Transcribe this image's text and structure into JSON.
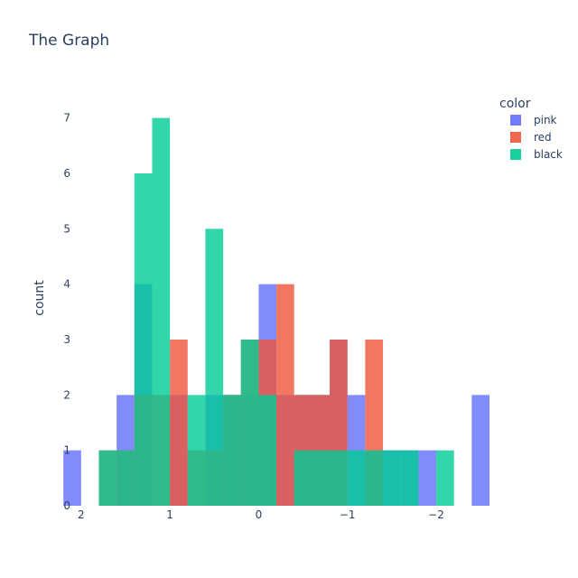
{
  "chart_data": {
    "type": "bar",
    "title": "The Graph",
    "xlabel": "",
    "ylabel": "count",
    "x_axis": {
      "reversed": true,
      "range": [
        2.1,
        -2.6
      ],
      "ticks": [
        2,
        1,
        0,
        -1,
        -2
      ],
      "tick_labels": [
        "2",
        "1",
        "0",
        "−1",
        "−2"
      ]
    },
    "y_axis": {
      "range": [
        0,
        7.5
      ],
      "ticks": [
        0,
        1,
        2,
        3,
        4,
        5,
        6,
        7
      ]
    },
    "bin_width": 0.2,
    "barmode": "overlay",
    "legend": {
      "title": "color",
      "position": "top-right"
    },
    "grid": false,
    "series": [
      {
        "name": "pink",
        "color": "#636efa",
        "x": [
          2.1,
          1.5,
          1.3,
          0.9,
          0.5,
          0.3,
          0.1,
          -0.1,
          -0.3,
          -0.5,
          -0.7,
          -0.9,
          -1.1,
          -1.3,
          -1.5,
          -1.7,
          -1.9,
          -2.5
        ],
        "y": [
          1,
          2,
          4,
          2,
          2,
          2,
          2,
          4,
          2,
          2,
          2,
          3,
          2,
          1,
          1,
          1,
          1,
          2
        ]
      },
      {
        "name": "red",
        "color": "#ef553b",
        "x": [
          1.7,
          1.5,
          1.3,
          1.1,
          0.9,
          0.7,
          0.5,
          0.3,
          0.1,
          -0.1,
          -0.3,
          -0.5,
          -0.7,
          -0.9,
          -1.3
        ],
        "y": [
          1,
          1,
          2,
          2,
          3,
          1,
          1,
          2,
          3,
          3,
          4,
          2,
          2,
          3,
          3
        ]
      },
      {
        "name": "black",
        "color": "#00cc96",
        "x": [
          1.7,
          1.5,
          1.3,
          1.1,
          0.7,
          0.5,
          0.3,
          0.1,
          -0.1,
          -0.5,
          -0.7,
          -0.9,
          -1.1,
          -1.3,
          -1.5,
          -1.7,
          -2.1
        ],
        "y": [
          1,
          1,
          6,
          7,
          2,
          5,
          2,
          3,
          2,
          1,
          1,
          1,
          1,
          1,
          1,
          1,
          1
        ]
      }
    ]
  }
}
